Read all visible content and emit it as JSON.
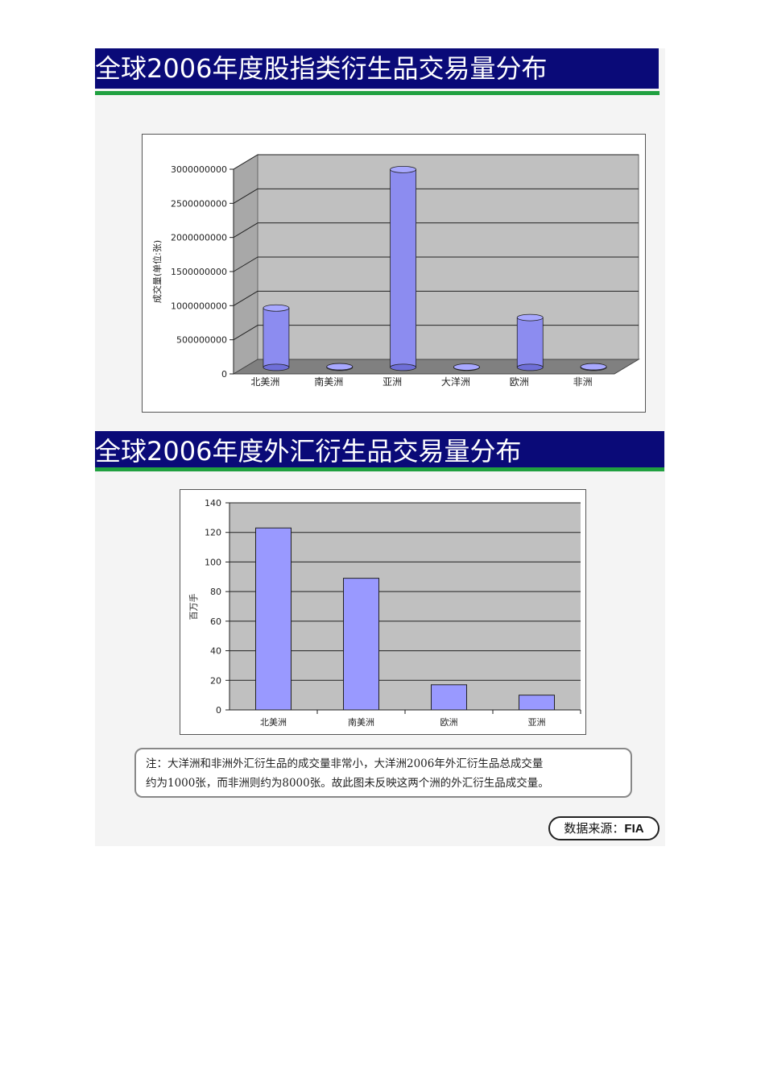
{
  "sections": [
    {
      "title": "全球2006年度股指类衍生品交易量分布"
    },
    {
      "title": "全球2006年度外汇衍生品交易量分布"
    }
  ],
  "note": {
    "line1": "注：大洋洲和非洲外汇衍生品的成交量非常小，大洋洲2006年外汇衍生品总成交量",
    "line2": "约为1000张，而非洲则约为8000张。故此图未反映这两个洲的外汇衍生品成交量。"
  },
  "source": {
    "label": "数据来源：",
    "name": "FIA"
  },
  "chart_data": [
    {
      "type": "bar",
      "style": "3d-cylinder",
      "title": "",
      "xlabel": "",
      "ylabel": "成交量(单位:张)",
      "categories": [
        "北美洲",
        "南美洲",
        "亚洲",
        "大洋洲",
        "欧洲",
        "非洲"
      ],
      "values": [
        870000000,
        10000000,
        2900000000,
        5000000,
        730000000,
        10000000
      ],
      "ylim": [
        0,
        3000000000
      ],
      "yticks": [
        "0",
        "500000000",
        "1000000000",
        "1500000000",
        "2000000000",
        "2500000000",
        "3000000000"
      ],
      "grid": true,
      "colors": {
        "bar": "#8c8cf0",
        "wall": "#c0c0c0",
        "floor": "#808080"
      }
    },
    {
      "type": "bar",
      "title": "",
      "xlabel": "",
      "ylabel": "百万手",
      "categories": [
        "北美洲",
        "南美洲",
        "欧洲",
        "亚洲"
      ],
      "values": [
        123,
        89,
        17,
        10
      ],
      "ylim": [
        0,
        140
      ],
      "yticks": [
        "0",
        "20",
        "40",
        "60",
        "80",
        "100",
        "120",
        "140"
      ],
      "grid": true,
      "colors": {
        "bar": "#9999ff",
        "plot": "#c0c0c0"
      }
    }
  ]
}
